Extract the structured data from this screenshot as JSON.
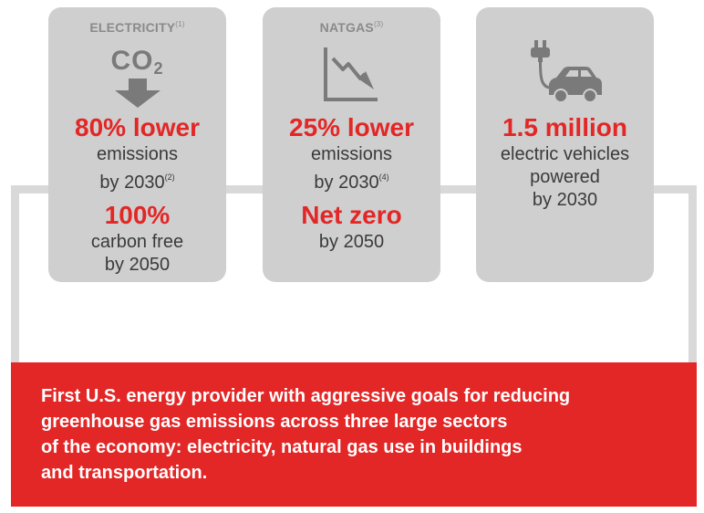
{
  "colors": {
    "accent": "#e32626",
    "card": "#cfcfcf",
    "icon": "#7a7a7a",
    "line": "#d9d9d9"
  },
  "electricity": {
    "title": "ELECTRICITY",
    "title_note": "(1)",
    "icon": "co2-down-arrow-icon",
    "co2_text": "CO",
    "co2_sub": "2",
    "stat1": "80% lower",
    "stat1_line1": "emissions",
    "stat1_line2": "by 2030",
    "stat1_note": "(2)",
    "stat2": "100%",
    "stat2_line1": "carbon free",
    "stat2_line2": "by 2050"
  },
  "natgas": {
    "title": "NATGAS",
    "title_note": "(3)",
    "icon": "declining-chart-icon",
    "stat1": "25% lower",
    "stat1_line1": "emissions",
    "stat1_line2": "by 2030",
    "stat1_note": "(4)",
    "stat2": "Net zero",
    "stat2_line1": "by 2050"
  },
  "vehicles": {
    "icon": "electric-car-plug-icon",
    "stat1": "1.5 million",
    "line1": "electric vehicles",
    "line2": "powered",
    "line3": "by 2030"
  },
  "banner": {
    "line1": "First U.S. energy provider with aggressive goals for reducing",
    "line2": "greenhouse gas emissions across three large sectors",
    "line3": "of the economy: electricity, natural gas use in buildings",
    "line4": "and transportation."
  }
}
